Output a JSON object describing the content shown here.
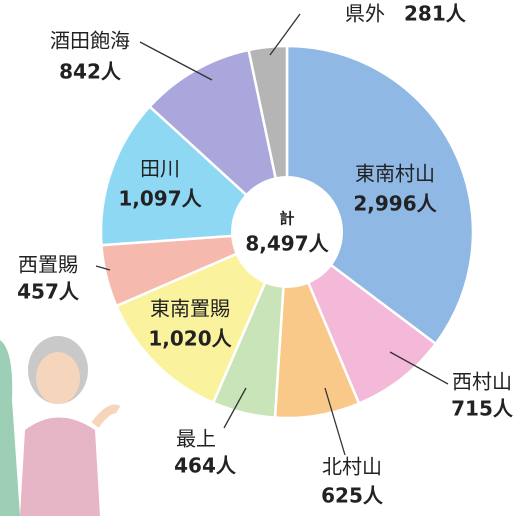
{
  "chart_data": {
    "type": "donut",
    "categories": [
      "東南村山",
      "西村山",
      "北村山",
      "最上",
      "東南置賜",
      "西置賜",
      "田川",
      "酒田飽海",
      "県外"
    ],
    "values": [
      2996,
      715,
      625,
      464,
      1020,
      457,
      1097,
      842,
      281
    ],
    "value_labels": [
      "2,996人",
      "715人",
      "625人",
      "464人",
      "1,020人",
      "457人",
      "1,097人",
      "842人",
      "281人"
    ],
    "colors": [
      "#8fb8e4",
      "#f4b8d8",
      "#f9c98a",
      "#c8e4b8",
      "#fbf29e",
      "#f6b9ae",
      "#8fd8f4",
      "#aaa7dc",
      "#b5b5b5"
    ],
    "center_title": "計",
    "total": 8497,
    "total_label": "8,497人"
  }
}
